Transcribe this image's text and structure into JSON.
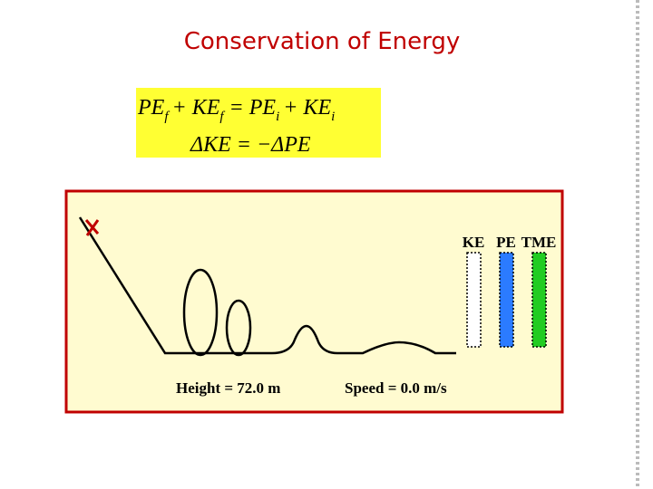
{
  "title": "Conservation of Energy",
  "equations": {
    "line1": [
      "PE",
      "f",
      "+ KE",
      "f",
      "= PE",
      "i",
      "+ KE",
      "i"
    ],
    "line2": "ΔKE = −ΔPE"
  },
  "diagram": {
    "bar_labels": [
      "KE",
      "PE",
      "TME"
    ],
    "height_readout": "Height = 72.0 m",
    "speed_readout": "Speed =  0.0  m/s"
  }
}
